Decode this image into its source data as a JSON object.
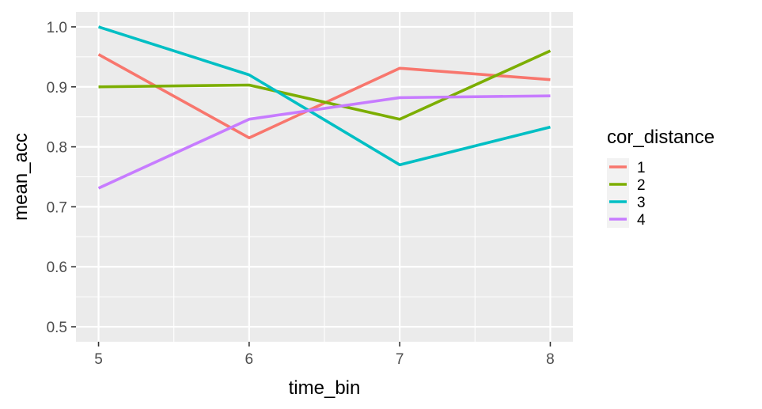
{
  "chart_data": {
    "type": "line",
    "title": "",
    "xlabel": "time_bin",
    "ylabel": "mean_acc",
    "x": [
      5,
      6,
      7,
      8
    ],
    "x_ticks": [
      5,
      6,
      7,
      8
    ],
    "x_tick_labels": [
      "5",
      "6",
      "7",
      "8"
    ],
    "xlim": [
      4.85,
      8.15
    ],
    "y_ticks": [
      0.5,
      0.6,
      0.7,
      0.8,
      0.9,
      1.0
    ],
    "y_tick_labels": [
      "0.5",
      "0.6",
      "0.7",
      "0.8",
      "0.9",
      "1.0"
    ],
    "ylim": [
      0.475,
      1.025
    ],
    "grid": true,
    "legend": {
      "title": "cor_distance",
      "position": "right"
    },
    "series": [
      {
        "name": "1",
        "color": "#F8766D",
        "values": [
          0.954,
          0.815,
          0.931,
          0.912
        ]
      },
      {
        "name": "2",
        "color": "#7CAE00",
        "values": [
          0.9,
          0.903,
          0.846,
          0.96
        ]
      },
      {
        "name": "3",
        "color": "#00BFC4",
        "values": [
          1.0,
          0.92,
          0.77,
          0.833
        ]
      },
      {
        "name": "4",
        "color": "#C77CFF",
        "values": [
          0.731,
          0.846,
          0.882,
          0.885
        ]
      }
    ]
  }
}
